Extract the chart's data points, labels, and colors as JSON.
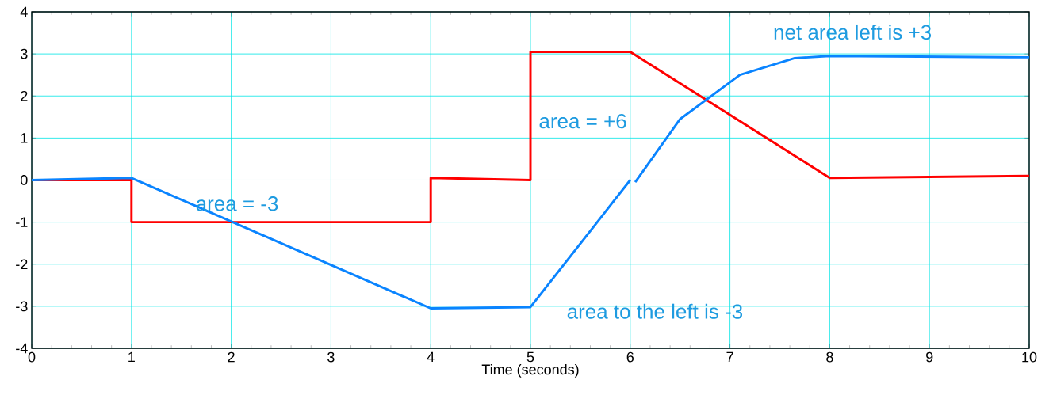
{
  "chart_data": {
    "type": "line",
    "xlabel": "Time (seconds)",
    "series": [
      {
        "color": "#ff0000",
        "x": [
          0,
          1,
          1,
          4,
          4,
          5,
          5,
          6,
          8,
          10
        ],
        "values": [
          0,
          0,
          -1,
          -1,
          0.05,
          0,
          3.05,
          3.05,
          0.05,
          0.1
        ]
      },
      {
        "color": "#0a84ff",
        "x": [
          0,
          1,
          4,
          5,
          6
        ],
        "values": [
          0,
          0.05,
          -3.05,
          -3.02,
          0
        ]
      },
      {
        "color": "#0a84ff",
        "x": [
          6.05,
          6.5,
          7.1,
          7.65,
          8,
          10
        ],
        "values": [
          -0.05,
          1.45,
          2.5,
          2.9,
          2.95,
          2.92
        ]
      }
    ],
    "xlim": [
      0,
      10
    ],
    "ylim": [
      -4,
      4
    ],
    "xticks": [
      0,
      1,
      2,
      3,
      4,
      5,
      6,
      7,
      8,
      9,
      10
    ],
    "yticks": [
      -4,
      -3,
      -2,
      -1,
      0,
      1,
      2,
      3,
      4
    ],
    "grid": true,
    "line_style": "solid",
    "annotations": [
      "area = -3",
      "area = +6",
      "area to the left is -3",
      "net area left is +3"
    ]
  }
}
